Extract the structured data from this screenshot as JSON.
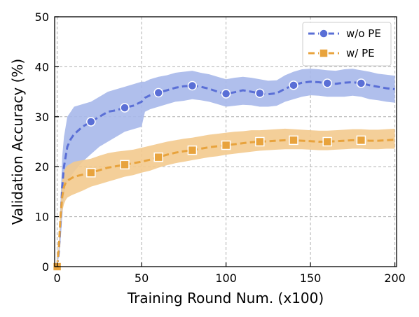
{
  "chart_data": {
    "type": "line",
    "title": "",
    "xlabel": "Training Round Num. (x100)",
    "ylabel": "Validation Accuracy (%)",
    "xlim": [
      -1.5,
      201
    ],
    "ylim": [
      0,
      50
    ],
    "x_ticks": [
      0,
      50,
      100,
      150,
      200
    ],
    "y_ticks": [
      0,
      10,
      20,
      30,
      40,
      50
    ],
    "grid": true,
    "legend_position": "top-right",
    "series": [
      {
        "name": "w/o PE",
        "color": "#5a6fd6",
        "band_color": "#a7b8ea",
        "marker": "circle",
        "marker_x": [
          0,
          20,
          40,
          60,
          80,
          100,
          120,
          140,
          160,
          180
        ],
        "x": [
          0,
          1,
          2,
          3,
          4,
          5,
          6,
          8,
          10,
          15,
          20,
          25,
          30,
          35,
          40,
          45,
          50,
          52,
          55,
          60,
          65,
          70,
          75,
          80,
          85,
          90,
          95,
          100,
          105,
          110,
          115,
          120,
          125,
          130,
          135,
          140,
          145,
          150,
          155,
          160,
          165,
          170,
          175,
          180,
          185,
          190,
          195,
          200
        ],
        "y": [
          0,
          3,
          9,
          16,
          20,
          22,
          24,
          25.5,
          26.5,
          28,
          29,
          30,
          31,
          31.3,
          31.8,
          32.2,
          33,
          33.8,
          34.3,
          34.8,
          35.3,
          35.8,
          36.1,
          36.2,
          36,
          35.6,
          35,
          34.6,
          34.9,
          35.3,
          35,
          34.7,
          34.5,
          34.7,
          35.6,
          36.3,
          36.8,
          37,
          36.9,
          36.7,
          36.6,
          36.8,
          36.9,
          36.7,
          36.3,
          36,
          35.7,
          35.5
        ],
        "lower": [
          0,
          2,
          5,
          10,
          14,
          16,
          17,
          18,
          19,
          21,
          22.5,
          24,
          25,
          26,
          27,
          27.5,
          28,
          31,
          31.5,
          32,
          32.5,
          33,
          33.2,
          33.5,
          33.3,
          33,
          32.5,
          32,
          32.2,
          32.4,
          32.3,
          32,
          32,
          32.2,
          33,
          33.5,
          34,
          34.3,
          34.2,
          34,
          34,
          34,
          34.2,
          34,
          33.5,
          33.3,
          33,
          32.8
        ],
        "upper": [
          0,
          4,
          13,
          22,
          26,
          28,
          30,
          31,
          32,
          32.5,
          33,
          34,
          35,
          35.5,
          36,
          36.5,
          37,
          37,
          37.5,
          38,
          38.3,
          38.8,
          39,
          39.2,
          38.8,
          38.5,
          38,
          37.5,
          37.8,
          38,
          37.8,
          37.5,
          37.2,
          37.3,
          38.3,
          39,
          39.5,
          39.6,
          39.5,
          39.3,
          39.2,
          39.5,
          39.6,
          39.3,
          39,
          38.6,
          38.4,
          38.2
        ]
      },
      {
        "name": "w/ PE",
        "color": "#e8a33d",
        "band_color": "#f3ca8e",
        "marker": "square",
        "marker_x": [
          0,
          20,
          40,
          60,
          80,
          100,
          120,
          140,
          160,
          180
        ],
        "x": [
          0,
          1,
          2,
          3,
          4,
          5,
          6,
          8,
          10,
          15,
          20,
          25,
          30,
          35,
          40,
          45,
          50,
          55,
          60,
          65,
          70,
          75,
          80,
          85,
          90,
          95,
          100,
          105,
          110,
          115,
          120,
          125,
          130,
          135,
          140,
          145,
          150,
          155,
          160,
          165,
          170,
          175,
          180,
          185,
          190,
          195,
          200
        ],
        "y": [
          0,
          4,
          10,
          14,
          16,
          16.8,
          17.2,
          17.6,
          18,
          18.4,
          18.8,
          19.3,
          19.8,
          20.1,
          20.4,
          20.7,
          21,
          21.4,
          21.9,
          22.4,
          22.8,
          23.1,
          23.3,
          23.6,
          23.9,
          24.1,
          24.3,
          24.5,
          24.7,
          24.9,
          25,
          25.1,
          25.2,
          25.3,
          25.3,
          25.2,
          25.1,
          25,
          25,
          25.1,
          25.2,
          25.3,
          25.3,
          25.2,
          25.2,
          25.3,
          25.4
        ],
        "lower": [
          0,
          3,
          8,
          11,
          12.5,
          13.3,
          13.8,
          14.2,
          14.5,
          15.2,
          16,
          16.5,
          17,
          17.5,
          18,
          18.3,
          18.8,
          19.2,
          19.8,
          20.3,
          20.7,
          21,
          21.3,
          21.6,
          21.9,
          22.1,
          22.4,
          22.6,
          22.8,
          23,
          23.2,
          23.3,
          23.4,
          23.5,
          23.5,
          23.5,
          23.4,
          23.3,
          23.3,
          23.4,
          23.5,
          23.6,
          23.6,
          23.5,
          23.5,
          23.6,
          23.6
        ],
        "upper": [
          0,
          5,
          12,
          17,
          19,
          19.8,
          20.2,
          20.6,
          21,
          21.3,
          21.6,
          22.2,
          22.7,
          23,
          23.2,
          23.4,
          23.8,
          24.2,
          24.6,
          25,
          25.3,
          25.6,
          25.8,
          26.1,
          26.4,
          26.6,
          26.8,
          27,
          27.1,
          27.3,
          27.3,
          27.4,
          27.5,
          27.6,
          27.5,
          27.4,
          27.3,
          27.2,
          27.2,
          27.3,
          27.4,
          27.5,
          27.5,
          27.4,
          27.4,
          27.5,
          27.6
        ]
      }
    ]
  }
}
